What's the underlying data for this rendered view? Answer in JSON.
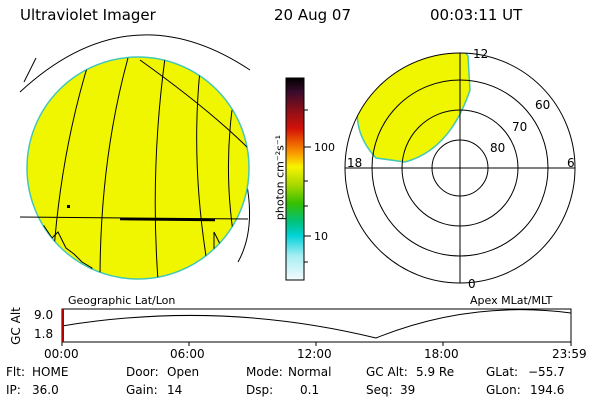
{
  "header": {
    "title": "Ultraviolet Imager",
    "date": "20 Aug 07",
    "time": "00:03:11 UT"
  },
  "colorbar": {
    "unit_label": "photon cm⁻²s⁻¹",
    "tick_labels": [
      "100",
      "10"
    ],
    "scale": "log"
  },
  "geo_panel": {
    "label": "Geographic Lat/Lon",
    "fill_color": "#f0f500"
  },
  "polar_panel": {
    "label": "Apex MLat/MLT",
    "mlt_labels": {
      "top": "12",
      "left": "18",
      "right": "6",
      "bottom": "0"
    },
    "lat_labels": [
      "60",
      "70",
      "80"
    ]
  },
  "altitude_plot": {
    "ylabel": "GC Alt",
    "y_ticks": [
      "9.0",
      "1.8"
    ],
    "x_ticks": [
      "00:00",
      "06:00",
      "12:00",
      "18:00",
      "23:59"
    ],
    "marker_time": "00:03"
  },
  "status": [
    [
      {
        "label": "Flt:",
        "value": "HOME"
      },
      {
        "label": "Door:",
        "value": "Open"
      },
      {
        "label": "Mode:",
        "value": "Normal"
      },
      {
        "label": "GC Alt:",
        "value": "5.9 Re"
      },
      {
        "label": "GLat:",
        "value": "−55.7"
      }
    ],
    [
      {
        "label": "IP:",
        "value": "36.0"
      },
      {
        "label": "Gain:",
        "value": "14"
      },
      {
        "label": "Dsp:",
        "value": "0.1"
      },
      {
        "label": "Seq:",
        "value": "39"
      },
      {
        "label": "GLon:",
        "value": "194.6"
      }
    ]
  ]
}
